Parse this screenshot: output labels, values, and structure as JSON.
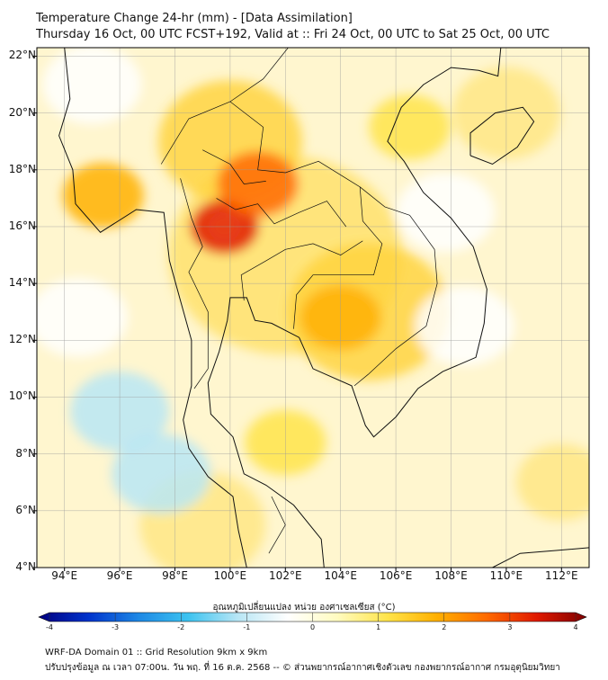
{
  "title": {
    "line1": "Temperature Change 24-hr (mm) - [Data Assimilation]",
    "line2": "Thursday 16 Oct, 00 UTC FCST+192, Valid at :: Fri 24 Oct, 00 UTC to Sat 25 Oct, 00 UTC"
  },
  "map": {
    "lat_labels": [
      "22°N",
      "20°N",
      "18°N",
      "16°N",
      "14°N",
      "12°N",
      "10°N",
      "8°N",
      "6°N",
      "4°N"
    ],
    "lat_values": [
      22,
      20,
      18,
      16,
      14,
      12,
      10,
      8,
      6,
      4
    ],
    "lon_labels": [
      "94°E",
      "96°E",
      "98°E",
      "100°E",
      "102°E",
      "104°E",
      "106°E",
      "108°E",
      "110°E",
      "112°E"
    ],
    "lon_values": [
      94,
      96,
      98,
      100,
      102,
      104,
      106,
      108,
      110,
      112
    ],
    "extent": {
      "lon_min": 93,
      "lon_max": 113,
      "lat_min": 4,
      "lat_max": 22.3
    },
    "field": "temperature change 24-hr",
    "hotspots": [
      {
        "lon": 99.8,
        "lat": 16.0,
        "value": 3.2
      },
      {
        "lon": 101.0,
        "lat": 17.5,
        "value": 2.4
      },
      {
        "lon": 95.4,
        "lat": 17.1,
        "value": 2.0
      },
      {
        "lon": 104.0,
        "lat": 12.8,
        "value": 2.0
      },
      {
        "lon": 102.0,
        "lat": 8.4,
        "value": 1.4
      },
      {
        "lon": 106.5,
        "lat": 19.5,
        "value": 1.0
      }
    ],
    "coldspots": [
      {
        "lon": 96.0,
        "lat": 9.5,
        "value": -0.8
      },
      {
        "lon": 94.5,
        "lat": 12.8,
        "value": -0.6
      },
      {
        "lon": 108.5,
        "lat": 12.5,
        "value": -0.6
      },
      {
        "lon": 97.5,
        "lat": 7.3,
        "value": -0.9
      },
      {
        "lon": 107.8,
        "lat": 16.5,
        "value": -0.5
      },
      {
        "lon": 95.0,
        "lat": 21.0,
        "value": -0.4
      }
    ]
  },
  "colorbar": {
    "title": "อุณหภูมิเปลี่ยนแปลง หน่วย องศาเซลเซียส (°C)",
    "ticks": [
      "-4",
      "-3",
      "-2",
      "-1",
      "0",
      "1",
      "2",
      "3",
      "4"
    ],
    "min": -4,
    "max": 4,
    "colors": [
      "#00007f",
      "#0033cc",
      "#1e88e5",
      "#3cc3f0",
      "#b8e6f5",
      "#ffffff",
      "#fffbc0",
      "#ffe44a",
      "#ffb000",
      "#ff6a00",
      "#e01a00",
      "#7f0000"
    ]
  },
  "footer": {
    "line1": "WRF-DA Domain 01 :: Grid Resolution 9km x 9km",
    "line2": "ปรับปรุงข้อมูล ณ เวลา 07:00น. วัน พฤ. ที่ 16 ต.ค. 2568 -- © ส่วนพยากรณ์อากาศเชิงตัวเลข กองพยากรณ์อากาศ กรมอุตุนิยมวิทยา"
  }
}
